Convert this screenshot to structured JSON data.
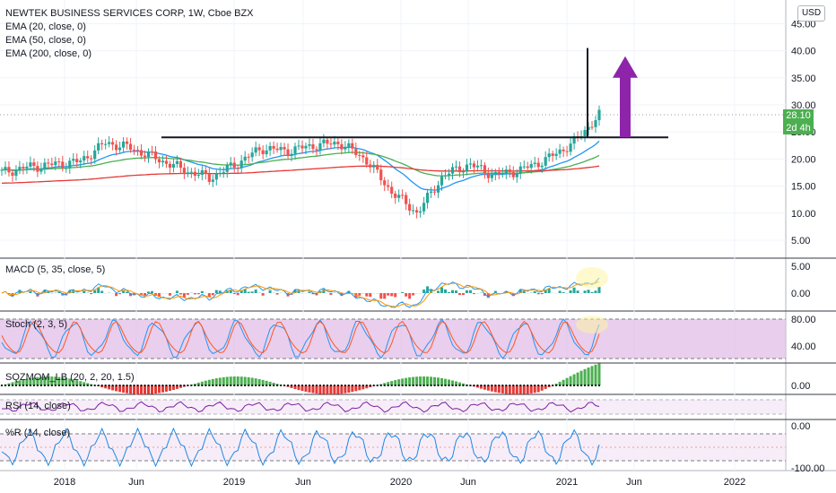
{
  "header": {
    "symbol_line": "NEWTEK BUSINESS SERVICES CORP, 1W, Cboe BZX",
    "indicators": [
      "EMA (20, close, 0)",
      "EMA (50, close, 0)",
      "EMA (200, close, 0)"
    ],
    "currency": "USD"
  },
  "price_axis": {
    "ticks": [
      "45.00",
      "40.00",
      "35.00",
      "30.00",
      "25.00",
      "20.00",
      "15.00",
      "10.00",
      "5.00"
    ],
    "last_price": "28.10",
    "countdown": "2d 4h"
  },
  "panes": {
    "macd": {
      "label": "MACD (5, 35, close, 5)",
      "ticks": [
        "5.00",
        "0.00"
      ]
    },
    "stoch": {
      "label": "Stoch (2, 3, 5)",
      "ticks": [
        "80.00",
        "40.00"
      ]
    },
    "sqzmom": {
      "label": "SQZMOM_LB (20, 2, 20, 1.5)",
      "ticks": [
        "0.00"
      ]
    },
    "rsi": {
      "label": "RSI (14, close)",
      "ticks": []
    },
    "wr": {
      "label": "%R (14, close)",
      "ticks": [
        "0.00",
        "-100.00"
      ]
    }
  },
  "time_axis": [
    "2018",
    "Jun",
    "2019",
    "Jun",
    "2020",
    "Jun",
    "2021",
    "Jun",
    "2022"
  ],
  "colors": {
    "up": "#26a69a",
    "down": "#ef5350",
    "ema20": "#2196f3",
    "ema50": "#4caf50",
    "ema200": "#e53935",
    "annotation_arrow": "#8e24aa",
    "oscillator_band": "#e1bee7"
  },
  "chart_data": {
    "type": "line",
    "title": "NEWTEK BUSINESS SERVICES CORP, 1W, Cboe BZX",
    "x": [
      "2017-09",
      "2017-12",
      "2018-01",
      "2018-03",
      "2018-06",
      "2018-08",
      "2018-10",
      "2018-12",
      "2019-01",
      "2019-03",
      "2019-06",
      "2019-08",
      "2019-10",
      "2019-12",
      "2020-01",
      "2020-03",
      "2020-04",
      "2020-06",
      "2020-08",
      "2020-10",
      "2020-12",
      "2021-01",
      "2021-02",
      "2021-03"
    ],
    "series": [
      {
        "values": [
          17.5,
          18.5,
          19,
          19.5,
          23,
          22,
          20,
          18,
          16.5,
          19,
          22,
          21.5,
          22.5,
          23,
          20,
          14,
          10,
          17,
          19,
          17,
          18,
          20,
          23,
          28.1
        ]
      }
    ],
    "ylim": [
      0,
      47
    ],
    "annotations": {
      "horizontal_level": 24,
      "last_price": 28.1,
      "vertical_marker_range": [
        24,
        40.5
      ],
      "arrow_range": [
        24,
        37
      ]
    }
  }
}
